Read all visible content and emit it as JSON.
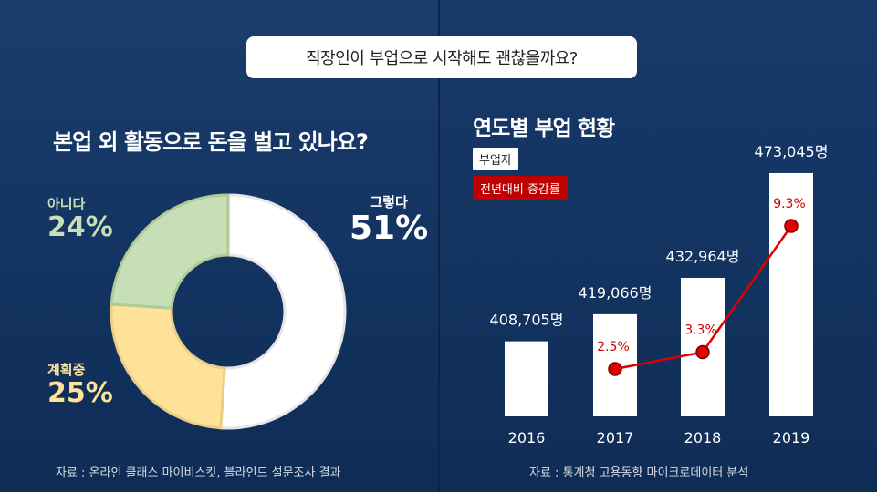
{
  "main_title": "직장인이 부업으로 시작해도 괜찮을까요?",
  "left": {
    "heading": "본업 외 활동으로 돈을 벌고 있나요?",
    "source": "자료 : 온라인 클래스 마이비스킷, 블라인드 설문조사 결과"
  },
  "right": {
    "heading": "연도별 부업 현황",
    "legend_bar": "부업자",
    "legend_line": "전년대비 증감률",
    "source": "자료 : 통계청 고용동향 마이크로데이터 분석"
  },
  "colors": {
    "yes": "#ffffff",
    "no": "#c7dfb6",
    "plan": "#ffe29a",
    "line": "#e00000",
    "background": "#12325f"
  },
  "chart_data": [
    {
      "type": "pie",
      "title": "본업 외 활동으로 돈을 벌고 있나요?",
      "slices": [
        {
          "label": "그렇다",
          "value": 51,
          "display": "51%"
        },
        {
          "label": "계획중",
          "value": 25,
          "display": "25%"
        },
        {
          "label": "아니다",
          "value": 24,
          "display": "24%"
        }
      ]
    },
    {
      "type": "bar",
      "title": "연도별 부업 현황",
      "categories": [
        "2016",
        "2017",
        "2018",
        "2019"
      ],
      "series": [
        {
          "name": "부업자",
          "values": [
            408705,
            419066,
            432964,
            473045
          ],
          "labels": [
            "408,705명",
            "419,066명",
            "432,964명",
            "473,045명"
          ]
        },
        {
          "name": "전년대비 증감률",
          "type": "line",
          "values": [
            null,
            2.5,
            3.3,
            9.3
          ],
          "labels": [
            "",
            "2.5%",
            "3.3%",
            "9.3%"
          ]
        }
      ],
      "ylim": [
        380000,
        480000
      ]
    }
  ]
}
